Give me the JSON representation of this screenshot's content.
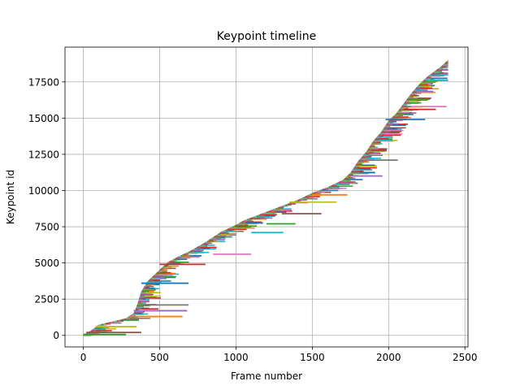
{
  "chart_data": {
    "type": "line",
    "title": "Keypoint timeline",
    "xlabel": "Frame number",
    "ylabel": "Keypoint id",
    "xlim": [
      -120,
      2520
    ],
    "ylim": [
      -800,
      19900
    ],
    "xticks": [
      0,
      500,
      1000,
      1500,
      2000,
      2500
    ],
    "xtick_labels": [
      "0",
      "500",
      "1000",
      "1500",
      "2000",
      "2500"
    ],
    "yticks": [
      0,
      2500,
      5000,
      7500,
      10000,
      12500,
      15000,
      17500
    ],
    "ytick_labels": [
      "0",
      "2500",
      "5000",
      "7500",
      "10000",
      "12500",
      "15000",
      "17500"
    ],
    "grid": true,
    "legend": "none",
    "series_description": "Each keypoint id is drawn as a horizontal line spanning the frames in which it is tracked (first frame to last frame).",
    "keypoint_count_approx": 19000,
    "frame_count_approx": 2390,
    "spawn_curve": {
      "frame": [
        0,
        50,
        100,
        200,
        280,
        330,
        350,
        380,
        420,
        480,
        550,
        620,
        700,
        800,
        900,
        1000,
        1050,
        1100,
        1150,
        1200,
        1300,
        1400,
        1500,
        1550,
        1600,
        1700,
        1750,
        1800,
        1850,
        1900,
        1950,
        2000,
        2050,
        2100,
        2150,
        2200,
        2250,
        2300,
        2340,
        2370,
        2390
      ],
      "keypoint_id": [
        0,
        300,
        700,
        950,
        1150,
        1500,
        2000,
        3000,
        3700,
        4300,
        5000,
        5400,
        5800,
        6400,
        7100,
        7600,
        7900,
        8100,
        8300,
        8500,
        8900,
        9300,
        9800,
        10000,
        10200,
        10700,
        11200,
        12000,
        12600,
        13400,
        14000,
        14800,
        15300,
        16000,
        16700,
        17300,
        17800,
        18200,
        18500,
        18800,
        19000
      ]
    },
    "notable_long_tracks": [
      {
        "start_frame": 0,
        "end_frame": 280,
        "keypoint_id": 60
      },
      {
        "start_frame": 20,
        "end_frame": 380,
        "keypoint_id": 200
      },
      {
        "start_frame": 80,
        "end_frame": 350,
        "keypoint_id": 600
      },
      {
        "start_frame": 300,
        "end_frame": 650,
        "keypoint_id": 1300
      },
      {
        "start_frame": 330,
        "end_frame": 680,
        "keypoint_id": 1700
      },
      {
        "start_frame": 360,
        "end_frame": 690,
        "keypoint_id": 2100
      },
      {
        "start_frame": 380,
        "end_frame": 690,
        "keypoint_id": 3600
      },
      {
        "start_frame": 500,
        "end_frame": 800,
        "keypoint_id": 4900
      },
      {
        "start_frame": 850,
        "end_frame": 1100,
        "keypoint_id": 5600
      },
      {
        "start_frame": 1100,
        "end_frame": 1310,
        "keypoint_id": 7100
      },
      {
        "start_frame": 1200,
        "end_frame": 1390,
        "keypoint_id": 7700
      },
      {
        "start_frame": 1300,
        "end_frame": 1560,
        "keypoint_id": 8400
      },
      {
        "start_frame": 1350,
        "end_frame": 1660,
        "keypoint_id": 9200
      },
      {
        "start_frame": 1500,
        "end_frame": 1730,
        "keypoint_id": 9700
      },
      {
        "start_frame": 1750,
        "end_frame": 1960,
        "keypoint_id": 11000
      },
      {
        "start_frame": 1850,
        "end_frame": 2060,
        "keypoint_id": 12100
      },
      {
        "start_frame": 1980,
        "end_frame": 2240,
        "keypoint_id": 14900
      },
      {
        "start_frame": 2100,
        "end_frame": 2310,
        "keypoint_id": 15600
      },
      {
        "start_frame": 2150,
        "end_frame": 2380,
        "keypoint_id": 15800
      },
      {
        "start_frame": 2250,
        "end_frame": 2390,
        "keypoint_id": 17600
      }
    ],
    "colors": [
      "#1f77b4",
      "#ff7f0e",
      "#2ca02c",
      "#d62728",
      "#9467bd",
      "#8c564b",
      "#e377c2",
      "#7f7f7f",
      "#bcbd22",
      "#17becf"
    ],
    "gridline_color": "#b0b0b0",
    "axis_color": "#000000"
  }
}
